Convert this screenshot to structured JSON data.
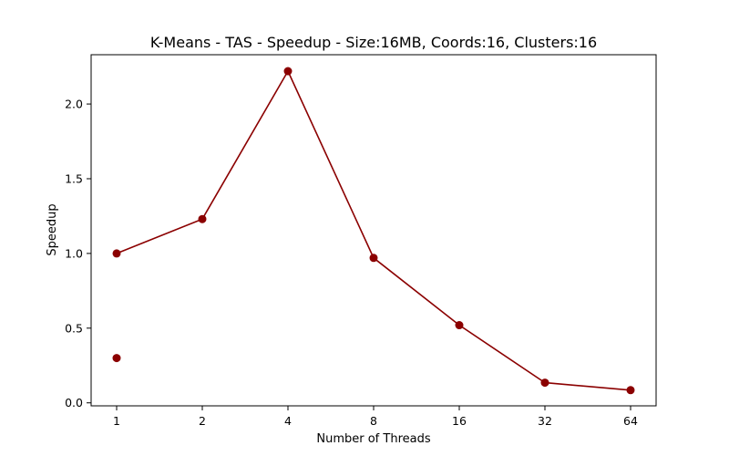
{
  "chart_data": {
    "type": "line",
    "title": "K-Means - TAS - Speedup - Size:16MB, Coords:16, Clusters:16",
    "xlabel": "Number of Threads",
    "ylabel": "Speedup",
    "categories": [
      "1",
      "2",
      "4",
      "8",
      "16",
      "32",
      "64"
    ],
    "series": [
      {
        "values": [
          1.0,
          1.23,
          2.22,
          0.97,
          0.52,
          0.135,
          0.085
        ],
        "color": "#8b0000"
      }
    ],
    "extra_points": [
      {
        "x": "1",
        "y": 0.3,
        "color": "#8b0000"
      }
    ],
    "yticks": [
      "0.0",
      "0.5",
      "1.0",
      "1.5",
      "2.0"
    ],
    "ylim": [
      -0.02,
      2.33
    ],
    "grid": false,
    "legend": false
  }
}
